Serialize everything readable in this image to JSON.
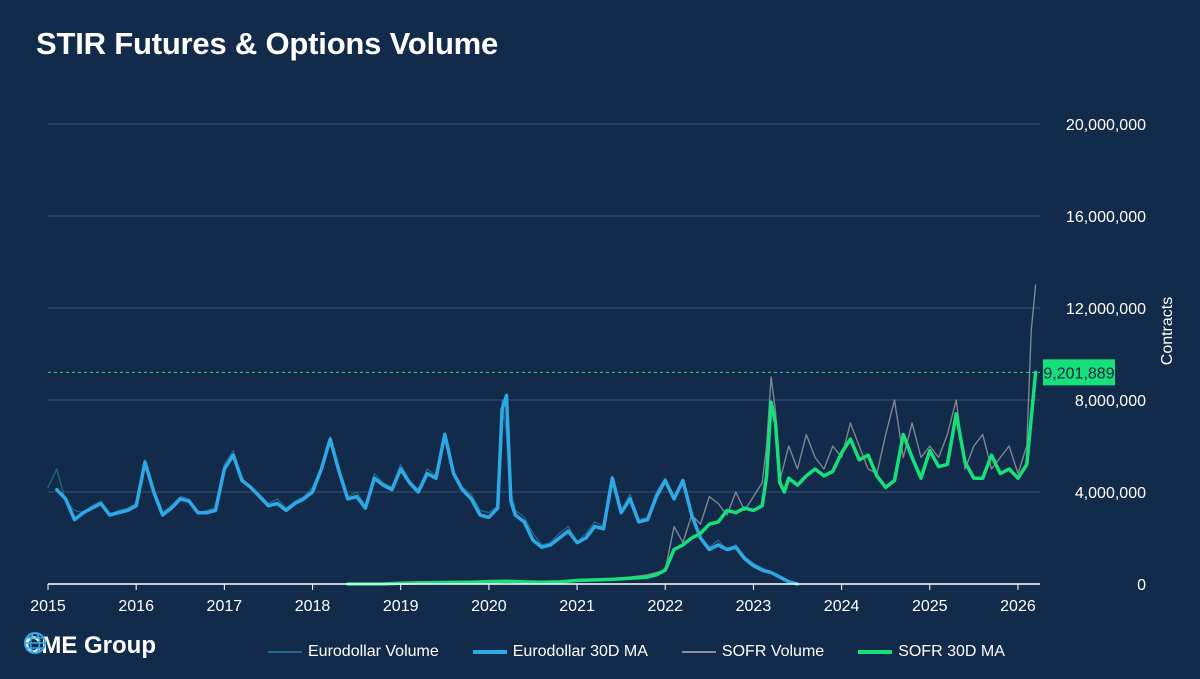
{
  "title": "STIR Futures & Options Volume",
  "colors": {
    "background": "#132b4a",
    "grid": "#3a5272",
    "eurodollar_volume": "#1f6a8e",
    "eurodollar_ma": "#2fa8e6",
    "sofr_volume": "#8a8f96",
    "sofr_ma": "#16e07a",
    "callout_bg": "#16e07a",
    "reference_line": "#2fd37a"
  },
  "logo": {
    "text": "CME Group",
    "icon": "globe-icon"
  },
  "legend": [
    {
      "label": "Eurodollar Volume",
      "color": "#1f6a8e",
      "weight": 2
    },
    {
      "label": "Eurodollar 30D MA",
      "color": "#2fa8e6",
      "weight": 4
    },
    {
      "label": "SOFR Volume",
      "color": "#8a8f96",
      "weight": 2
    },
    {
      "label": "SOFR 30D MA",
      "color": "#16e07a",
      "weight": 4
    }
  ],
  "chart_data": {
    "type": "line",
    "title": "STIR Futures & Options Volume",
    "ylabel": "Contracts",
    "xlim": [
      2015.0,
      2026.25
    ],
    "ylim": [
      0,
      22000000
    ],
    "x_ticks": [
      "2015",
      "2016",
      "2017",
      "2018",
      "2019",
      "2020",
      "2021",
      "2022",
      "2023",
      "2024",
      "2025",
      "2026"
    ],
    "y_ticks": [
      {
        "value": 0,
        "label": "0"
      },
      {
        "value": 4000000,
        "label": "4,000,000"
      },
      {
        "value": 8000000,
        "label": "8,000,000"
      },
      {
        "value": 12000000,
        "label": "12,000,000"
      },
      {
        "value": 16000000,
        "label": "16,000,000"
      },
      {
        "value": 20000000,
        "label": "20,000,000"
      }
    ],
    "grid": true,
    "axis_side": "right",
    "legend_position": "bottom",
    "callout": {
      "value": 9201889,
      "label": "9,201,889"
    },
    "series": [
      {
        "name": "Eurodollar Volume",
        "style": "volume",
        "x": [
          2015.0,
          2015.1,
          2015.2,
          2015.3,
          2015.4,
          2015.5,
          2015.6,
          2015.7,
          2015.8,
          2015.9,
          2016.0,
          2016.1,
          2016.2,
          2016.3,
          2016.4,
          2016.5,
          2016.6,
          2016.7,
          2016.8,
          2016.9,
          2017.0,
          2017.1,
          2017.2,
          2017.3,
          2017.4,
          2017.5,
          2017.6,
          2017.7,
          2017.8,
          2017.9,
          2018.0,
          2018.1,
          2018.2,
          2018.3,
          2018.4,
          2018.5,
          2018.6,
          2018.7,
          2018.8,
          2018.9,
          2019.0,
          2019.1,
          2019.2,
          2019.3,
          2019.4,
          2019.5,
          2019.6,
          2019.7,
          2019.8,
          2019.9,
          2020.0,
          2020.1,
          2020.15,
          2020.2,
          2020.25,
          2020.3,
          2020.4,
          2020.5,
          2020.6,
          2020.7,
          2020.8,
          2020.9,
          2021.0,
          2021.1,
          2021.2,
          2021.3,
          2021.4,
          2021.5,
          2021.6,
          2021.7,
          2021.8,
          2021.9,
          2022.0,
          2022.1,
          2022.2,
          2022.3,
          2022.4,
          2022.5,
          2022.6,
          2022.7,
          2022.8,
          2022.9,
          2023.0,
          2023.1,
          2023.2,
          2023.3,
          2023.4,
          2023.5
        ],
        "values": [
          4200000,
          5000000,
          3600000,
          3200000,
          3100000,
          3400000,
          3600000,
          3000000,
          3200000,
          3300000,
          3500000,
          5400000,
          4100000,
          3100000,
          3400000,
          3800000,
          3700000,
          3100000,
          3200000,
          3300000,
          5200000,
          5800000,
          4600000,
          4200000,
          3900000,
          3500000,
          3700000,
          3300000,
          3600000,
          3800000,
          4200000,
          5100000,
          6400000,
          5000000,
          3800000,
          4000000,
          3400000,
          4800000,
          4400000,
          4200000,
          5200000,
          4500000,
          4100000,
          5000000,
          4700000,
          6600000,
          4900000,
          4200000,
          3900000,
          3200000,
          3100000,
          3400000,
          8000000,
          6500000,
          4000000,
          3200000,
          2900000,
          2200000,
          1700000,
          1800000,
          2200000,
          2500000,
          1800000,
          2200000,
          2700000,
          2500000,
          4700000,
          3200000,
          3900000,
          2800000,
          2900000,
          4000000,
          4600000,
          3800000,
          4500000,
          3000000,
          2000000,
          1600000,
          1900000,
          1500000,
          1700000,
          1200000,
          900000,
          700000,
          500000,
          300000,
          100000,
          0
        ]
      },
      {
        "name": "Eurodollar 30D MA",
        "style": "ma",
        "x": [
          2015.1,
          2015.2,
          2015.3,
          2015.4,
          2015.5,
          2015.6,
          2015.7,
          2015.8,
          2015.9,
          2016.0,
          2016.1,
          2016.2,
          2016.3,
          2016.4,
          2016.5,
          2016.6,
          2016.7,
          2016.8,
          2016.9,
          2017.0,
          2017.1,
          2017.2,
          2017.3,
          2017.4,
          2017.5,
          2017.6,
          2017.7,
          2017.8,
          2017.9,
          2018.0,
          2018.1,
          2018.2,
          2018.3,
          2018.4,
          2018.5,
          2018.6,
          2018.7,
          2018.8,
          2018.9,
          2019.0,
          2019.1,
          2019.2,
          2019.3,
          2019.4,
          2019.5,
          2019.6,
          2019.7,
          2019.8,
          2019.9,
          2020.0,
          2020.1,
          2020.15,
          2020.2,
          2020.25,
          2020.3,
          2020.4,
          2020.5,
          2020.6,
          2020.7,
          2020.8,
          2020.9,
          2021.0,
          2021.1,
          2021.2,
          2021.3,
          2021.4,
          2021.5,
          2021.6,
          2021.7,
          2021.8,
          2021.9,
          2022.0,
          2022.1,
          2022.2,
          2022.3,
          2022.4,
          2022.5,
          2022.6,
          2022.7,
          2022.8,
          2022.9,
          2023.0,
          2023.1,
          2023.2,
          2023.3,
          2023.4,
          2023.5
        ],
        "values": [
          4100000,
          3700000,
          2800000,
          3100000,
          3300000,
          3500000,
          3000000,
          3100000,
          3200000,
          3400000,
          5300000,
          4000000,
          3000000,
          3300000,
          3700000,
          3600000,
          3100000,
          3100000,
          3200000,
          5000000,
          5600000,
          4500000,
          4200000,
          3800000,
          3400000,
          3500000,
          3200000,
          3500000,
          3700000,
          4000000,
          5000000,
          6300000,
          4900000,
          3700000,
          3800000,
          3300000,
          4600000,
          4300000,
          4100000,
          5000000,
          4400000,
          4000000,
          4800000,
          4600000,
          6500000,
          4800000,
          4100000,
          3700000,
          3000000,
          2900000,
          3300000,
          7600000,
          8200000,
          3600000,
          3000000,
          2700000,
          1900000,
          1600000,
          1700000,
          2000000,
          2300000,
          1800000,
          2000000,
          2500000,
          2400000,
          4600000,
          3100000,
          3700000,
          2700000,
          2800000,
          3800000,
          4500000,
          3700000,
          4500000,
          3000000,
          2000000,
          1500000,
          1700000,
          1500000,
          1600000,
          1100000,
          800000,
          600000,
          500000,
          300000,
          100000,
          0
        ]
      },
      {
        "name": "SOFR Volume",
        "style": "volume",
        "x": [
          2018.4,
          2018.6,
          2018.8,
          2019.0,
          2019.2,
          2019.4,
          2019.6,
          2019.8,
          2020.0,
          2020.2,
          2020.4,
          2020.6,
          2020.8,
          2021.0,
          2021.2,
          2021.4,
          2021.6,
          2021.8,
          2022.0,
          2022.1,
          2022.2,
          2022.3,
          2022.4,
          2022.5,
          2022.6,
          2022.7,
          2022.8,
          2022.9,
          2023.0,
          2023.1,
          2023.15,
          2023.2,
          2023.25,
          2023.3,
          2023.4,
          2023.5,
          2023.6,
          2023.7,
          2023.8,
          2023.9,
          2024.0,
          2024.1,
          2024.2,
          2024.3,
          2024.4,
          2024.5,
          2024.6,
          2024.7,
          2024.8,
          2024.9,
          2025.0,
          2025.1,
          2025.2,
          2025.3,
          2025.4,
          2025.5,
          2025.6,
          2025.7,
          2025.8,
          2025.9,
          2026.0,
          2026.1,
          2026.15,
          2026.2
        ],
        "values": [
          0,
          0,
          0,
          50000,
          80000,
          100000,
          100000,
          100000,
          150000,
          150000,
          100000,
          100000,
          100000,
          200000,
          200000,
          250000,
          300000,
          400000,
          600000,
          2500000,
          1800000,
          3000000,
          2600000,
          3800000,
          3500000,
          3000000,
          4000000,
          3200000,
          3800000,
          4400000,
          6000000,
          9000000,
          7500000,
          4500000,
          6000000,
          5000000,
          6500000,
          5500000,
          5000000,
          6000000,
          5500000,
          7000000,
          6000000,
          5000000,
          4800000,
          6500000,
          8000000,
          5500000,
          7000000,
          5500000,
          6000000,
          5500000,
          6500000,
          8000000,
          5000000,
          6000000,
          6500000,
          5000000,
          5500000,
          6000000,
          4800000,
          6000000,
          11000000,
          13000000
        ]
      },
      {
        "name": "SOFR 30D MA",
        "style": "ma",
        "x": [
          2018.4,
          2018.6,
          2018.8,
          2019.0,
          2019.2,
          2019.4,
          2019.6,
          2019.8,
          2020.0,
          2020.2,
          2020.4,
          2020.6,
          2020.8,
          2021.0,
          2021.2,
          2021.4,
          2021.6,
          2021.8,
          2021.9,
          2022.0,
          2022.1,
          2022.2,
          2022.3,
          2022.4,
          2022.5,
          2022.6,
          2022.7,
          2022.8,
          2022.9,
          2023.0,
          2023.1,
          2023.15,
          2023.2,
          2023.25,
          2023.3,
          2023.35,
          2023.4,
          2023.5,
          2023.6,
          2023.7,
          2023.8,
          2023.9,
          2024.0,
          2024.1,
          2024.2,
          2024.3,
          2024.4,
          2024.5,
          2024.6,
          2024.7,
          2024.8,
          2024.9,
          2025.0,
          2025.1,
          2025.2,
          2025.3,
          2025.4,
          2025.5,
          2025.6,
          2025.7,
          2025.8,
          2025.9,
          2026.0,
          2026.1,
          2026.15,
          2026.2
        ],
        "values": [
          0,
          0,
          0,
          30000,
          50000,
          60000,
          70000,
          80000,
          100000,
          120000,
          90000,
          80000,
          90000,
          150000,
          180000,
          200000,
          250000,
          300000,
          400000,
          600000,
          1500000,
          1700000,
          2000000,
          2200000,
          2600000,
          2700000,
          3200000,
          3100000,
          3300000,
          3200000,
          3400000,
          4700000,
          7900000,
          7000000,
          4400000,
          4000000,
          4600000,
          4300000,
          4700000,
          5000000,
          4700000,
          4900000,
          5700000,
          6300000,
          5400000,
          5600000,
          4700000,
          4200000,
          4500000,
          6500000,
          5500000,
          4600000,
          5800000,
          5100000,
          5200000,
          7400000,
          5300000,
          4600000,
          4600000,
          5600000,
          4800000,
          5000000,
          4600000,
          5200000,
          7200000,
          9200000
        ]
      }
    ]
  }
}
